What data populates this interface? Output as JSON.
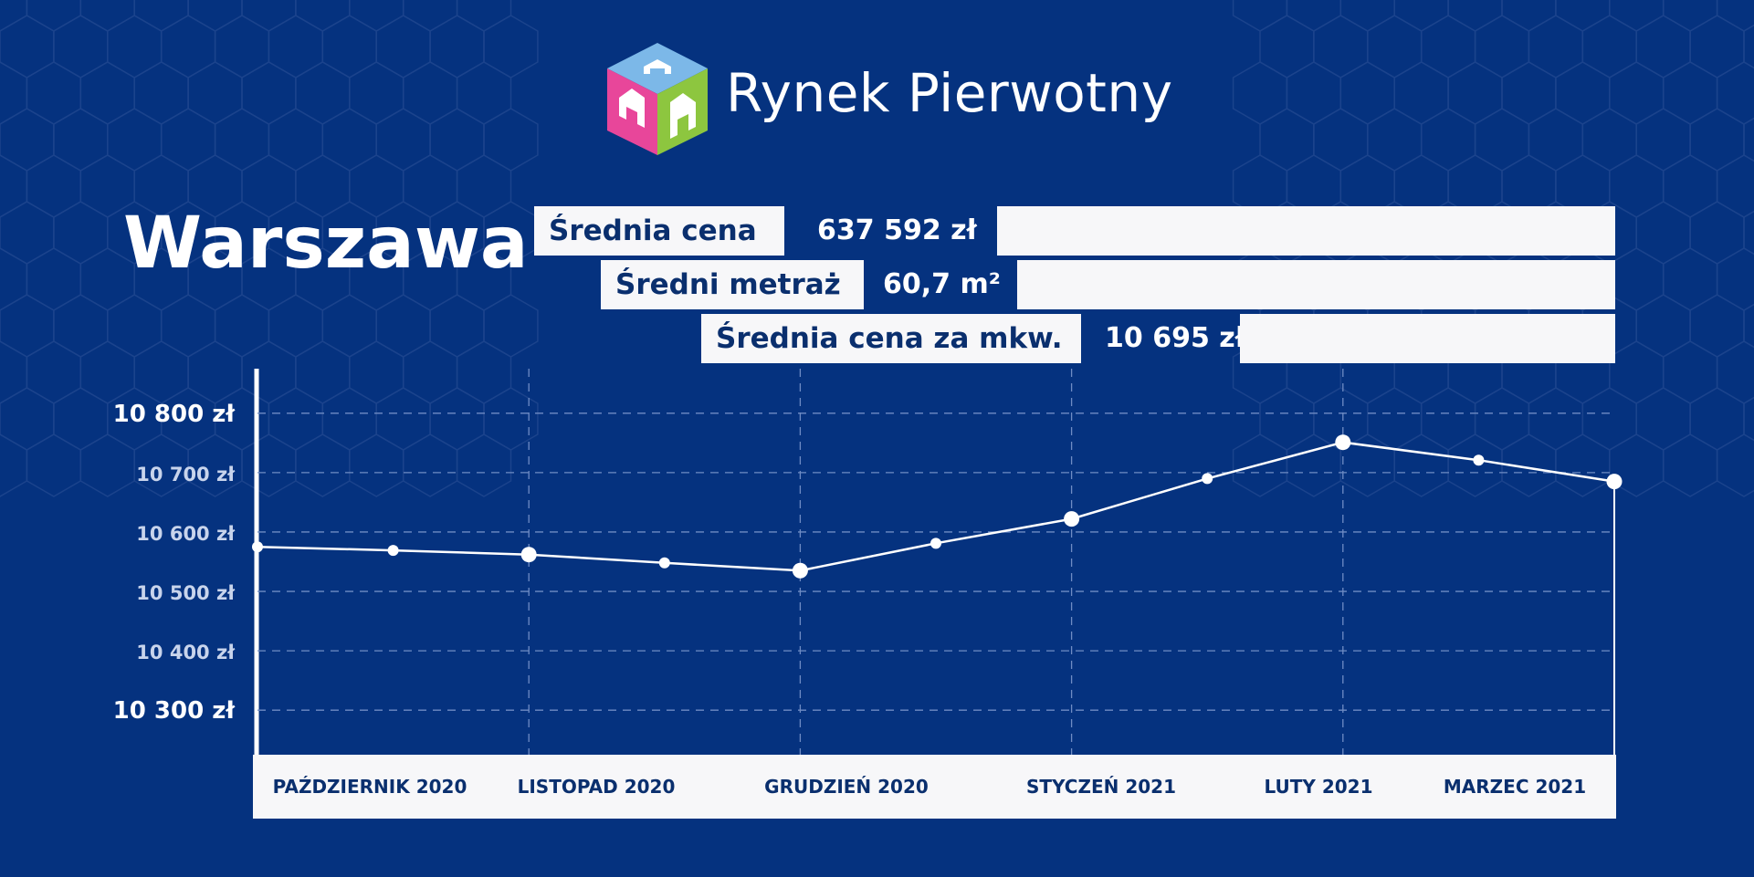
{
  "header": {
    "brand_name": "Rynek Pierwotny"
  },
  "city_title": "Warszawa",
  "stats": [
    {
      "label": "Średnia cena",
      "value": "637 592 zł"
    },
    {
      "label": "Średni metraż",
      "value": "60,7 m²"
    },
    {
      "label": "Średnia cena za mkw.",
      "value": "10 695 zł"
    }
  ],
  "colors": {
    "background": "#05327f",
    "panel": "#f7f7f9",
    "text_dark": "#0a2f6e",
    "line": "#ffffff",
    "logo_top": "#7cb8e8",
    "logo_left": "#e8469a",
    "logo_right": "#8dc63f"
  },
  "chart_data": {
    "type": "line",
    "categories": [
      "PAŹDZIERNIK 2020",
      "LISTOPAD 2020",
      "GRUDZIEŃ 2020",
      "STYCZEŃ 2021",
      "LUTY 2021",
      "MARZEC 2021"
    ],
    "yticks": [
      {
        "value": 10800,
        "label": "10 800 zł"
      },
      {
        "value": 10700,
        "label": "10 700 zł"
      },
      {
        "value": 10600,
        "label": "10 600 zł"
      },
      {
        "value": 10500,
        "label": "10 500 zł"
      },
      {
        "value": 10400,
        "label": "10 400 zł"
      },
      {
        "value": 10300,
        "label": "10 300 zł"
      }
    ],
    "ylim": [
      10225,
      10875
    ],
    "grid": true,
    "series": [
      {
        "points": [
          {
            "x": 0.0,
            "y": 10575
          },
          {
            "x": 0.5,
            "y": 10569
          },
          {
            "x": 1.0,
            "y": 10562,
            "major": true
          },
          {
            "x": 1.5,
            "y": 10548
          },
          {
            "x": 2.0,
            "y": 10535,
            "major": true
          },
          {
            "x": 2.5,
            "y": 10581
          },
          {
            "x": 3.0,
            "y": 10622,
            "major": true
          },
          {
            "x": 3.5,
            "y": 10690
          },
          {
            "x": 4.0,
            "y": 10751,
            "major": true
          },
          {
            "x": 4.5,
            "y": 10721
          },
          {
            "x": 5.0,
            "y": 10685,
            "major": true
          }
        ]
      }
    ]
  }
}
